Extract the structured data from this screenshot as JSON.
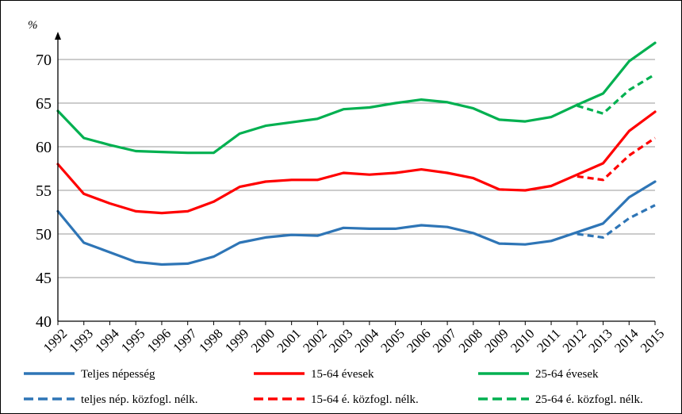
{
  "chart_data": {
    "type": "line",
    "unit_label": "%",
    "x": [
      "1992",
      "1993",
      "1994",
      "1995",
      "1996",
      "1997",
      "1998",
      "1999",
      "2000",
      "2001",
      "2002",
      "2003",
      "2004",
      "2005",
      "2006",
      "2007",
      "2008",
      "2009",
      "2010",
      "2011",
      "2012",
      "2013",
      "2014",
      "2015"
    ],
    "ylim": [
      40,
      72
    ],
    "yticks": [
      40,
      45,
      50,
      55,
      60,
      65,
      70
    ],
    "grid": true,
    "series": [
      {
        "name": "Teljes népesség",
        "color": "#2E75B6",
        "dash": false,
        "values": [
          52.6,
          49.0,
          47.9,
          46.8,
          46.5,
          46.6,
          47.4,
          49.0,
          49.6,
          49.9,
          49.8,
          50.7,
          50.6,
          50.6,
          51.0,
          50.8,
          50.1,
          48.9,
          48.8,
          49.2,
          50.2,
          51.2,
          54.2,
          56.0
        ]
      },
      {
        "name": "15-64 évesek",
        "color": "#FF0000",
        "dash": false,
        "values": [
          58.0,
          54.6,
          53.5,
          52.6,
          52.4,
          52.6,
          53.7,
          55.4,
          56.0,
          56.2,
          56.2,
          57.0,
          56.8,
          57.0,
          57.4,
          57.0,
          56.4,
          55.1,
          55.0,
          55.5,
          56.8,
          58.1,
          61.8,
          64.0
        ]
      },
      {
        "name": "25-64 évesek",
        "color": "#00B050",
        "dash": false,
        "values": [
          64.1,
          61.0,
          60.2,
          59.5,
          59.4,
          59.3,
          59.3,
          61.5,
          62.4,
          62.8,
          63.2,
          64.3,
          64.5,
          65.0,
          65.4,
          65.1,
          64.4,
          63.1,
          62.9,
          63.4,
          64.8,
          66.1,
          69.8,
          71.9
        ]
      },
      {
        "name": "teljes nép. közfogl. nélk.",
        "color": "#2E75B6",
        "dash": true,
        "values": [
          null,
          null,
          null,
          null,
          null,
          null,
          null,
          null,
          null,
          null,
          null,
          null,
          null,
          null,
          null,
          null,
          null,
          null,
          null,
          null,
          50.0,
          49.6,
          51.8,
          53.3
        ]
      },
      {
        "name": "15-64 é. közfogl. nélk.",
        "color": "#FF0000",
        "dash": true,
        "values": [
          null,
          null,
          null,
          null,
          null,
          null,
          null,
          null,
          null,
          null,
          null,
          null,
          null,
          null,
          null,
          null,
          null,
          null,
          null,
          null,
          56.6,
          56.2,
          59.0,
          61.0
        ]
      },
      {
        "name": "25-64 é. közfogl. nélk.",
        "color": "#00B050",
        "dash": true,
        "values": [
          null,
          null,
          null,
          null,
          null,
          null,
          null,
          null,
          null,
          null,
          null,
          null,
          null,
          null,
          null,
          null,
          null,
          null,
          null,
          null,
          64.7,
          63.8,
          66.5,
          68.3
        ]
      }
    ]
  }
}
